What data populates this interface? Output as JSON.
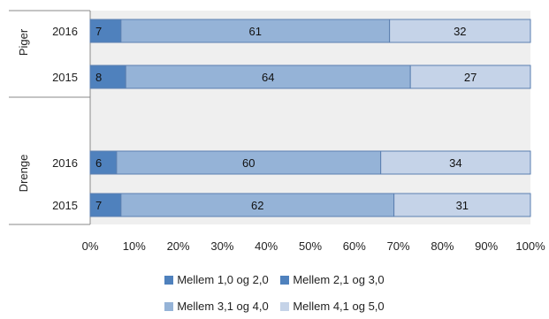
{
  "chart_data": {
    "type": "bar",
    "orientation": "horizontal",
    "stacked": true,
    "percent": true,
    "groups": [
      {
        "label": "Piger",
        "rows": [
          {
            "year": "2016",
            "values": [
              7,
              61,
              32
            ]
          },
          {
            "year": "2015",
            "values": [
              8,
              64,
              27
            ]
          }
        ]
      },
      {
        "label": "Drenge",
        "rows": [
          {
            "year": "2016",
            "values": [
              6,
              60,
              34
            ]
          },
          {
            "year": "2015",
            "values": [
              7,
              62,
              31
            ]
          }
        ]
      }
    ],
    "series": [
      {
        "name": "Mellem 1,0 og 2,0",
        "color": "#4f81bd"
      },
      {
        "name": "Mellem 2,1 og 3,0",
        "color": "#4f81bd"
      },
      {
        "name": "Mellem 3,1 og 4,0",
        "color": "#95b3d7"
      },
      {
        "name": "Mellem 4,1 og 5,0",
        "color": "#c5d3e8"
      }
    ],
    "segment_series": [
      0,
      2,
      3
    ],
    "x_ticks": [
      "0%",
      "10%",
      "20%",
      "30%",
      "40%",
      "50%",
      "60%",
      "70%",
      "80%",
      "90%",
      "100%"
    ],
    "xlim": [
      0,
      100
    ],
    "plot_background": "#efefef",
    "legend_position": "bottom"
  }
}
